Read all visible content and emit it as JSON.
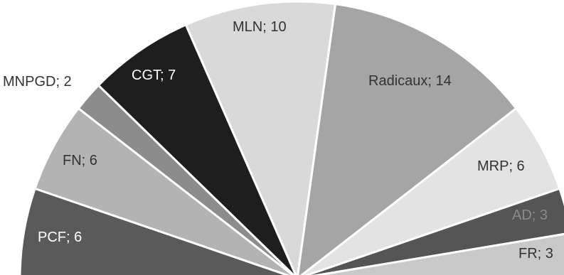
{
  "chart_data": {
    "type": "pie",
    "variant": "hemicycle",
    "unit": "seats",
    "series": [
      {
        "label": "PCF; 6",
        "name": "PCF",
        "value": 6,
        "color": "#5a5a5a",
        "text_color": "#ffffff"
      },
      {
        "label": "FN; 6",
        "name": "FN",
        "value": 6,
        "color": "#b3b3b3",
        "text_color": "#333333"
      },
      {
        "label": "MNPGD; 2",
        "name": "MNPGD",
        "value": 2,
        "color": "#8c8c8c",
        "text_color": "#333333"
      },
      {
        "label": "CGT; 7",
        "name": "CGT",
        "value": 7,
        "color": "#1e1e1e",
        "text_color": "#ffffff"
      },
      {
        "label": "MLN; 10",
        "name": "MLN",
        "value": 10,
        "color": "#d9d9d9",
        "text_color": "#333333"
      },
      {
        "label": "Radicaux; 14",
        "name": "Radicaux",
        "value": 14,
        "color": "#a5a5a5",
        "text_color": "#333333"
      },
      {
        "label": "MRP; 6",
        "name": "MRP",
        "value": 6,
        "color": "#e3e3e3",
        "text_color": "#333333"
      },
      {
        "label": "AD; 3",
        "name": "AD",
        "value": 3,
        "color": "#555555",
        "text_color": "#8a8a8a"
      },
      {
        "label": "FR; 3",
        "name": "FR",
        "value": 3,
        "color": "#c9c9c9",
        "text_color": "#333333"
      }
    ]
  }
}
